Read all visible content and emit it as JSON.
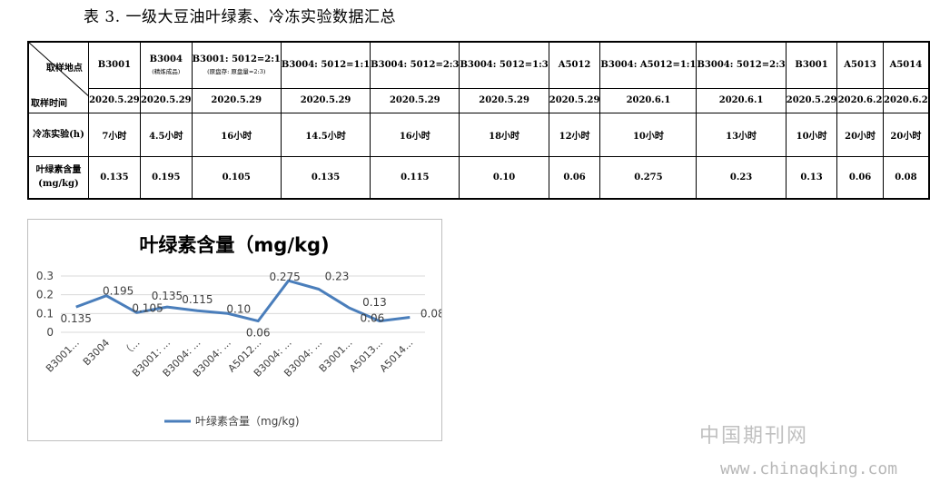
{
  "caption": "表 3. 一级大豆油叶绿素、冷冻实验数据汇总",
  "table": {
    "corner_top": "取样地点",
    "corner_bottom": "取样时间",
    "row_freeze_label": "冷冻实验(h)",
    "row_chl_label_1": "叶绿素含量",
    "row_chl_label_2": "(mg/kg)",
    "columns": [
      {
        "site": "B3001",
        "sub": "",
        "date": "2020.5.29",
        "freeze": "7小时",
        "chl": "0.135"
      },
      {
        "site": "B3004",
        "sub": "(精炼成品)",
        "date": "2020.5.29",
        "freeze": "4.5小时",
        "chl": "0.195"
      },
      {
        "site": "B3001: 5012=2:1",
        "sub": "(原盘存: 原盘量=2:3)",
        "date": "2020.5.29",
        "freeze": "16小时",
        "chl": "0.105"
      },
      {
        "site": "B3004: 5012=1:1",
        "sub": "",
        "date": "2020.5.29",
        "freeze": "14.5小时",
        "chl": "0.135"
      },
      {
        "site": "B3004: 5012=2:3",
        "sub": "",
        "date": "2020.5.29",
        "freeze": "16小时",
        "chl": "0.115"
      },
      {
        "site": "B3004: 5012=1:3",
        "sub": "",
        "date": "2020.5.29",
        "freeze": "18小时",
        "chl": "0.10"
      },
      {
        "site": "A5012",
        "sub": "",
        "date": "2020.5.29",
        "freeze": "12小时",
        "chl": "0.06"
      },
      {
        "site": "B3004: A5012=1:1",
        "sub": "",
        "date": "2020.6.1",
        "freeze": "10小时",
        "chl": "0.275"
      },
      {
        "site": "B3004: 5012=2:3",
        "sub": "",
        "date": "2020.6.1",
        "freeze": "13小时",
        "chl": "0.23"
      },
      {
        "site": "B3001",
        "sub": "",
        "date": "2020.5.29",
        "freeze": "10小时",
        "chl": "0.13"
      },
      {
        "site": "A5013",
        "sub": "",
        "date": "2020.6.2",
        "freeze": "20小时",
        "chl": "0.06"
      },
      {
        "site": "A5014",
        "sub": "",
        "date": "2020.6.2",
        "freeze": "20小时",
        "chl": "0.08"
      }
    ]
  },
  "chart_data": {
    "type": "line",
    "title": "叶绿素含量（mg/kg)",
    "categories": [
      "B3001...",
      "B3004",
      "（...",
      "B3001: ...",
      "B3004: ...",
      "B3004: ...",
      "A5012...",
      "B3004: ...",
      "B3004: ...",
      "B3001...",
      "A5013...",
      "A5014..."
    ],
    "series": [
      {
        "name": "叶绿素含量（mg/kg)",
        "values": [
          0.135,
          0.195,
          0.105,
          0.135,
          0.115,
          0.1,
          0.06,
          0.275,
          0.23,
          0.13,
          0.06,
          0.08
        ]
      }
    ],
    "data_labels": [
      "0.135",
      "0.195",
      "0.105",
      "0.135",
      "0.115",
      "0.10",
      "0.06",
      "0.275",
      "0.23",
      "0.13",
      "0.06",
      "0.08"
    ],
    "yticks": [
      "0",
      "0.1",
      "0.2",
      "0.3"
    ],
    "ylim": [
      0,
      0.3
    ],
    "grid": true,
    "legend": "bottom",
    "colors": {
      "line": "#4a7ebb",
      "grid": "#d9d9d9",
      "axis_text": "#404040"
    }
  },
  "watermark": {
    "cn": "中国期刊网",
    "url": "www.chinaqking.com"
  }
}
